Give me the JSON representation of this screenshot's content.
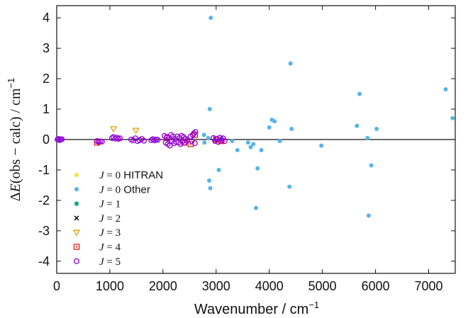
{
  "chart_data": {
    "type": "scatter",
    "title": "",
    "xlabel": "Wavenumber / cm",
    "xlabel_sup": "−1",
    "ylabel_parts": {
      "delta": "Δ",
      "E": "E",
      "paren": "(obs − calc) / cm",
      "sup": "−1"
    },
    "xlim": [
      0,
      7500
    ],
    "ylim": [
      -4.4,
      4.4
    ],
    "x_ticks": [
      0,
      1000,
      2000,
      3000,
      4000,
      5000,
      6000,
      7000
    ],
    "y_ticks": [
      -4,
      -3,
      -2,
      -1,
      0,
      1,
      2,
      3,
      4
    ],
    "grid": false,
    "legend_position": "lower-left",
    "zero_line": true,
    "series": [
      {
        "name": "J = 0 HITRAN",
        "j": "0",
        "suffix": "HITRAN",
        "marker": "dot",
        "color": "#f0e442",
        "points": []
      },
      {
        "name": "J = 0 Other",
        "j": "0",
        "suffix": "Other",
        "marker": "dot",
        "color": "#56b4e9",
        "points": [
          [
            10,
            0
          ],
          [
            30,
            0
          ],
          [
            60,
            0
          ],
          [
            2770,
            0.15
          ],
          [
            2780,
            -0.1
          ],
          [
            2850,
            0.05
          ],
          [
            2880,
            1.0
          ],
          [
            2870,
            -1.35
          ],
          [
            2890,
            -1.6
          ],
          [
            2900,
            4.0
          ],
          [
            3050,
            -1.0
          ],
          [
            3000,
            -0.05
          ],
          [
            3100,
            0.05
          ],
          [
            3300,
            -0.05
          ],
          [
            3400,
            -0.35
          ],
          [
            3600,
            -0.1
          ],
          [
            3650,
            -0.25
          ],
          [
            3700,
            -0.15
          ],
          [
            3750,
            -2.25
          ],
          [
            3780,
            -0.95
          ],
          [
            3850,
            -0.35
          ],
          [
            4000,
            0.4
          ],
          [
            4050,
            0.65
          ],
          [
            4100,
            0.6
          ],
          [
            4200,
            -0.05
          ],
          [
            4380,
            -1.55
          ],
          [
            4400,
            2.5
          ],
          [
            4420,
            0.35
          ],
          [
            4980,
            -0.2
          ],
          [
            5650,
            0.45
          ],
          [
            5700,
            1.5
          ],
          [
            5850,
            0.05
          ],
          [
            5870,
            -2.5
          ],
          [
            5920,
            -0.85
          ],
          [
            6020,
            0.35
          ],
          [
            7320,
            1.65
          ],
          [
            7450,
            0.7
          ]
        ]
      },
      {
        "name": "J = 1",
        "j": "1",
        "suffix": "",
        "marker": "star",
        "color": "#009e73",
        "points": []
      },
      {
        "name": "J = 2",
        "j": "2",
        "suffix": "",
        "marker": "cross",
        "color": "#000000",
        "points": []
      },
      {
        "name": "J = 3",
        "j": "3",
        "suffix": "",
        "marker": "triangle",
        "color": "#e69f00",
        "points": [
          [
            1070,
            0.35
          ],
          [
            1490,
            0.3
          ]
        ]
      },
      {
        "name": "J = 4",
        "j": "4",
        "suffix": "",
        "marker": "square",
        "color": "#e51e10",
        "points": [
          [
            760,
            -0.1
          ],
          [
            2080,
            0.05
          ],
          [
            2400,
            -0.1
          ],
          [
            2520,
            -0.15
          ],
          [
            3000,
            0.0
          ],
          [
            3100,
            -0.05
          ],
          [
            2600,
            0.15
          ]
        ]
      },
      {
        "name": "J = 5",
        "j": "5",
        "suffix": "",
        "marker": "circle-open",
        "color": "#9400d3",
        "points": [
          [
            15,
            0
          ],
          [
            35,
            0.02
          ],
          [
            55,
            -0.02
          ],
          [
            75,
            0
          ],
          [
            95,
            0.01
          ],
          [
            760,
            -0.05
          ],
          [
            790,
            -0.08
          ],
          [
            820,
            -0.06
          ],
          [
            850,
            -0.07
          ],
          [
            1040,
            0.05
          ],
          [
            1070,
            0.08
          ],
          [
            1100,
            0.03
          ],
          [
            1130,
            0.06
          ],
          [
            1160,
            0.02
          ],
          [
            1190,
            0.04
          ],
          [
            1400,
            0.0
          ],
          [
            1440,
            -0.03
          ],
          [
            1480,
            0.04
          ],
          [
            1520,
            -0.05
          ],
          [
            1560,
            -0.02
          ],
          [
            1600,
            0.02
          ],
          [
            1640,
            -0.04
          ],
          [
            1780,
            -0.02
          ],
          [
            1810,
            0.01
          ],
          [
            1840,
            -0.03
          ],
          [
            1870,
            0.0
          ],
          [
            1900,
            -0.01
          ],
          [
            2030,
            0.12
          ],
          [
            2050,
            -0.1
          ],
          [
            2070,
            0.08
          ],
          [
            2090,
            -0.15
          ],
          [
            2110,
            0.05
          ],
          [
            2130,
            -0.2
          ],
          [
            2150,
            0.15
          ],
          [
            2170,
            -0.05
          ],
          [
            2190,
            0.1
          ],
          [
            2210,
            -0.12
          ],
          [
            2230,
            0.02
          ],
          [
            2250,
            -0.08
          ],
          [
            2270,
            0.1
          ],
          [
            2290,
            -0.1
          ],
          [
            2310,
            0.05
          ],
          [
            2330,
            -0.15
          ],
          [
            2350,
            0.12
          ],
          [
            2370,
            -0.05
          ],
          [
            2390,
            0.08
          ],
          [
            2410,
            -0.1
          ],
          [
            2430,
            0.02
          ],
          [
            2450,
            -0.04
          ],
          [
            2520,
            0.1
          ],
          [
            2540,
            -0.05
          ],
          [
            2560,
            0.15
          ],
          [
            2580,
            0.2
          ],
          [
            2600,
            -0.12
          ],
          [
            2610,
            0.25
          ],
          [
            2950,
            0.05
          ],
          [
            2980,
            -0.05
          ],
          [
            3010,
            0.02
          ],
          [
            3040,
            -0.08
          ],
          [
            3070,
            0.06
          ],
          [
            3100,
            -0.03
          ],
          [
            3130,
            0.04
          ],
          [
            3160,
            -0.05
          ]
        ]
      }
    ]
  }
}
